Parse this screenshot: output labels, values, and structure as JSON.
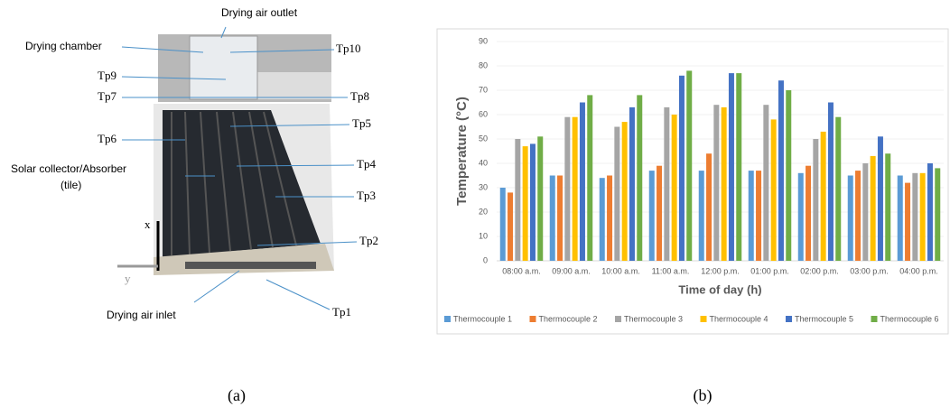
{
  "chart_data": {
    "type": "bar",
    "xlabel": "Time of day (h)",
    "ylabel": "Temperature (°C)",
    "categories": [
      "08:00 a.m.",
      "09:00 a.m.",
      "10:00 a.m.",
      "11:00 a.m.",
      "12:00 p.m.",
      "01:00 p.m.",
      "02:00 p.m.",
      "03:00 p.m.",
      "04:00 p.m."
    ],
    "series": [
      {
        "name": "Thermocouple 1",
        "color": "#5b9bd5",
        "values": [
          30,
          35,
          34,
          37,
          37,
          37,
          36,
          35,
          35
        ]
      },
      {
        "name": "Thermocouple 2",
        "color": "#ed7d31",
        "values": [
          28,
          35,
          35,
          39,
          44,
          37,
          39,
          37,
          32
        ]
      },
      {
        "name": "Thermocouple 3",
        "color": "#a5a5a5",
        "values": [
          50,
          59,
          55,
          63,
          64,
          64,
          50,
          40,
          36
        ]
      },
      {
        "name": "Thermocouple 4",
        "color": "#ffc000",
        "values": [
          47,
          59,
          57,
          60,
          63,
          58,
          53,
          43,
          36
        ]
      },
      {
        "name": "Thermocouple 5",
        "color": "#4472c4",
        "values": [
          48,
          65,
          63,
          76,
          77,
          74,
          65,
          51,
          40
        ]
      },
      {
        "name": "Thermocouple 6",
        "color": "#70ad47",
        "values": [
          51,
          68,
          68,
          78,
          77,
          70,
          59,
          44,
          38
        ]
      }
    ],
    "ylim": [
      0,
      90
    ],
    "yticks": [
      0,
      10,
      20,
      30,
      40,
      50,
      60,
      70,
      80,
      90
    ],
    "grid": true,
    "legend": "bottom"
  },
  "photo": {
    "labels": [
      "Drying air outlet",
      "Drying chamber",
      "Tp10",
      "Tp9",
      "Tp7",
      "Tp8",
      "Tp6",
      "Tp5",
      "Solar collector/Absorber",
      "(tile)",
      "Tp4",
      "Tp3",
      "x",
      "Tp2",
      "y",
      "Drying air inlet",
      "Tp1"
    ]
  },
  "panels": [
    "(a)",
    "(b)"
  ]
}
